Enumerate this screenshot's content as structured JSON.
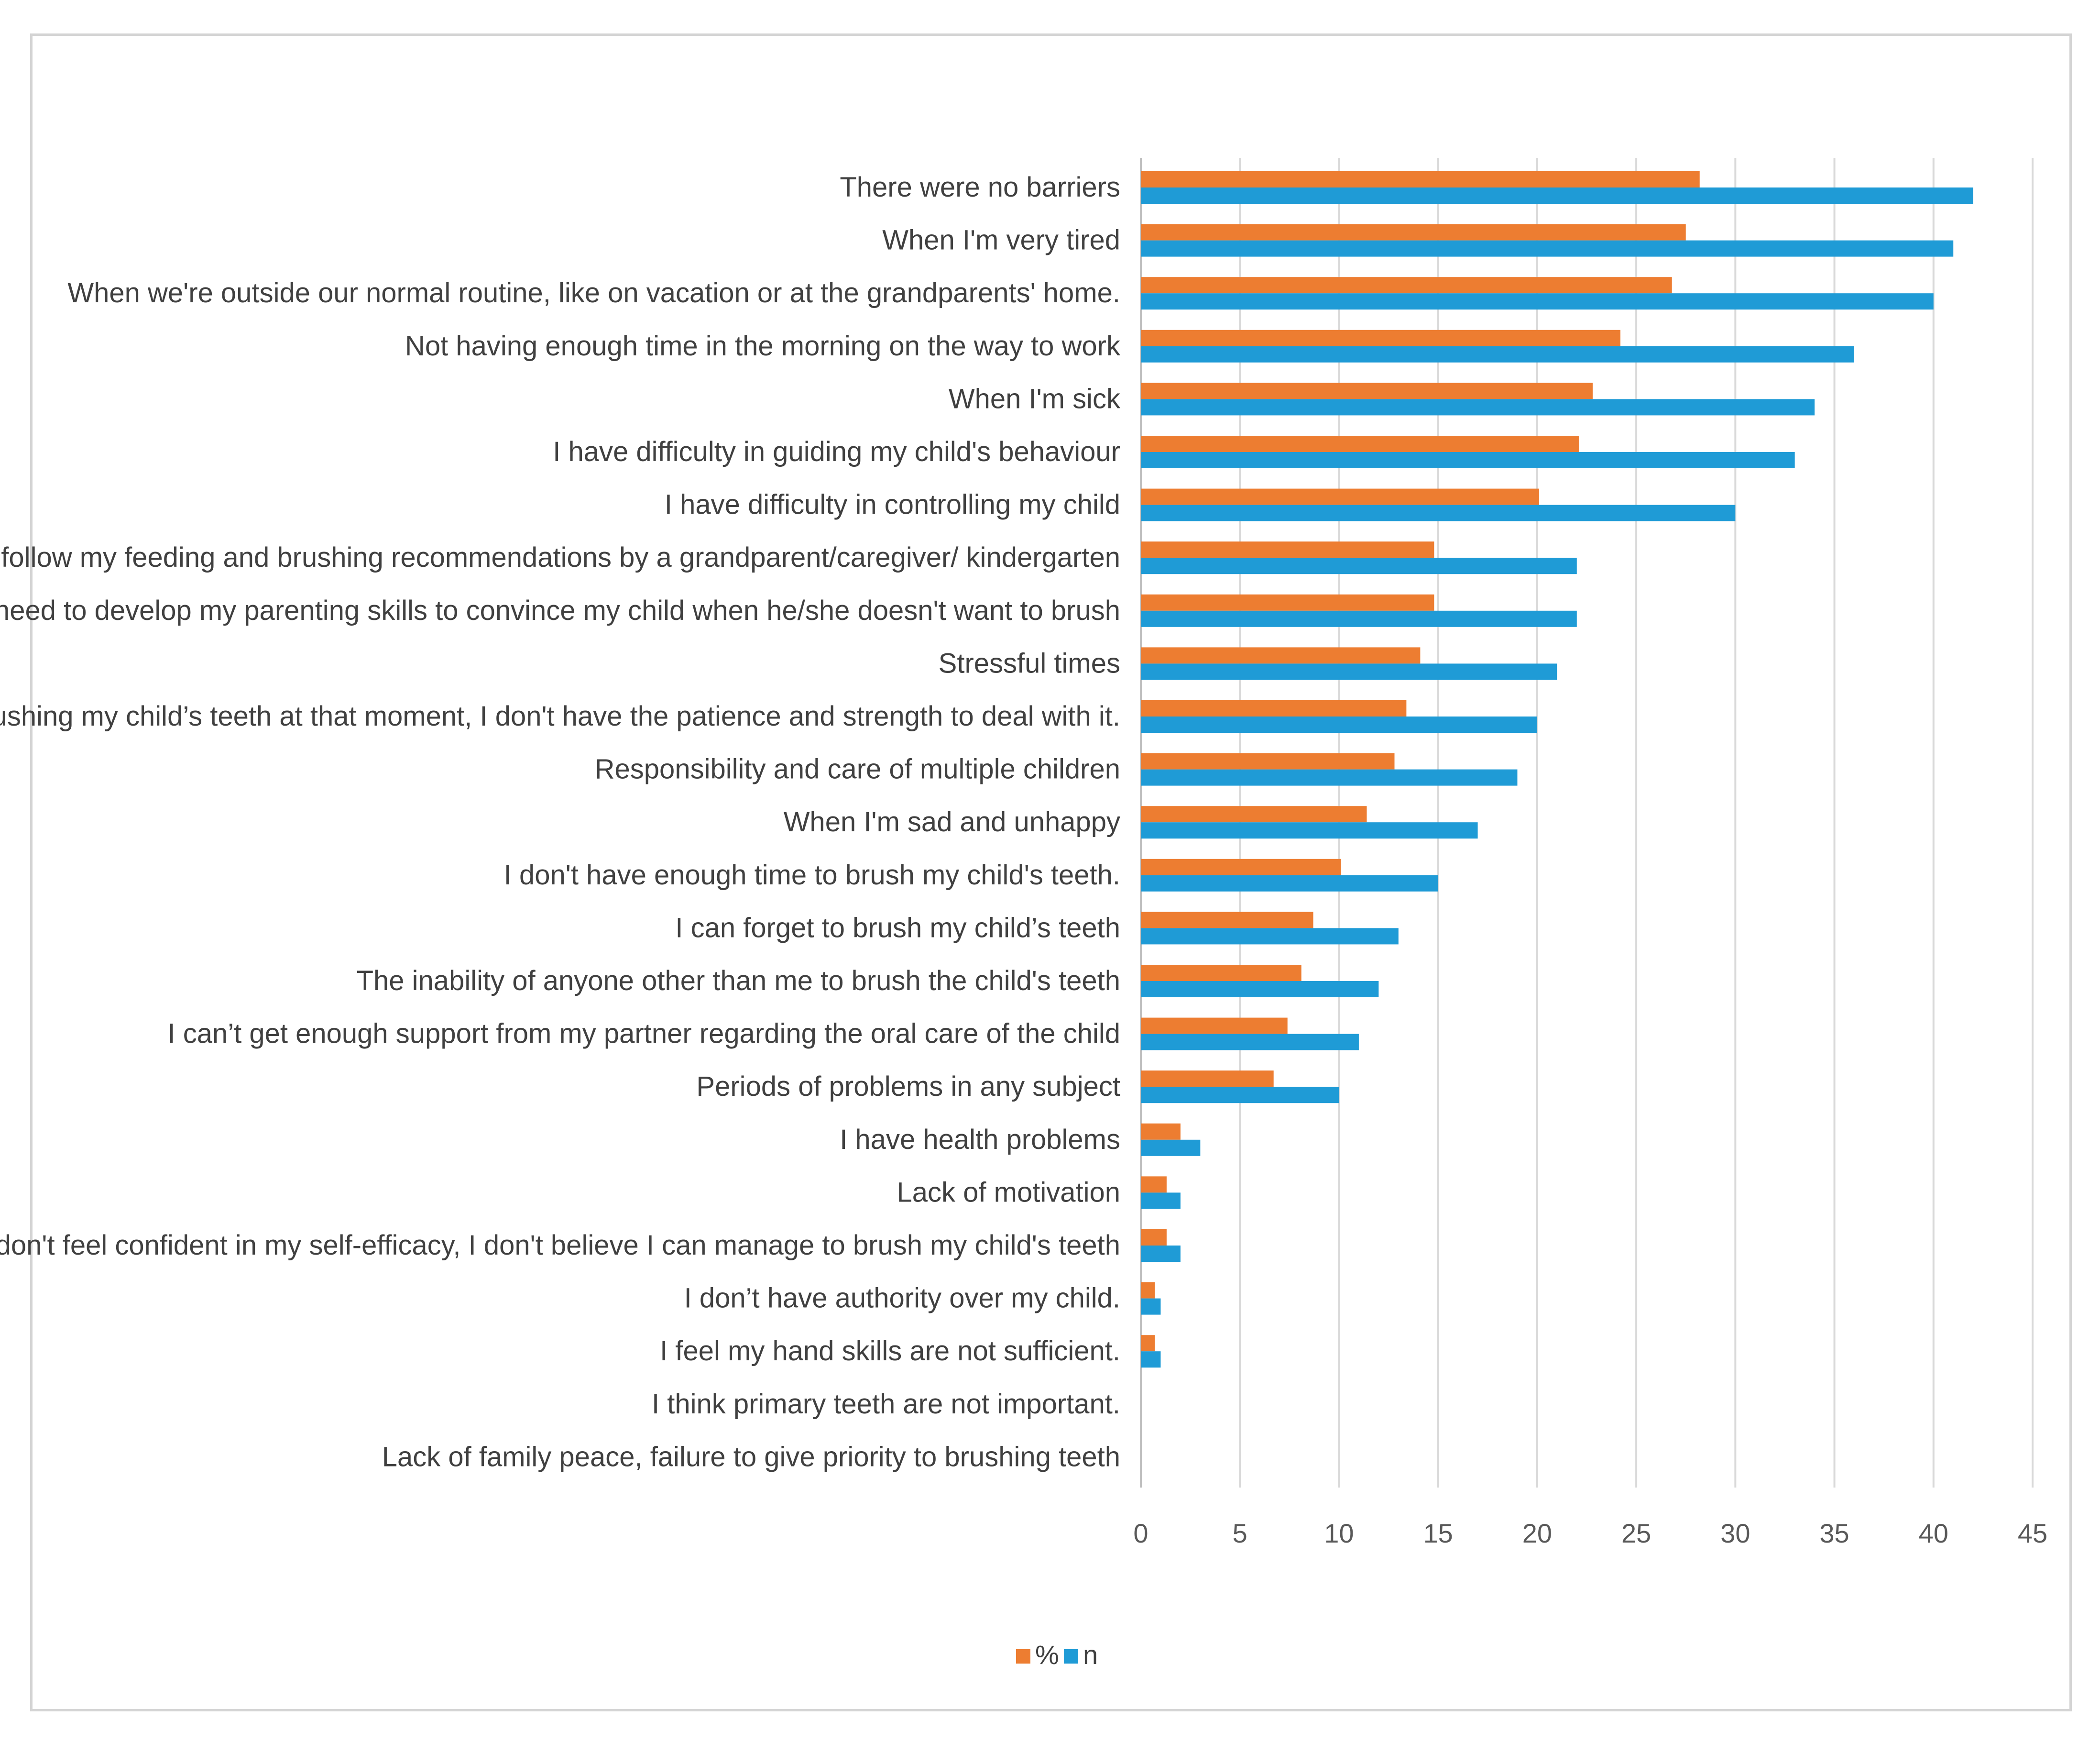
{
  "chart_data": {
    "type": "bar",
    "orientation": "horizontal",
    "title": "",
    "xlabel": "",
    "ylabel": "",
    "xlim": [
      0,
      45
    ],
    "xticks": [
      0,
      5,
      10,
      15,
      20,
      25,
      30,
      35,
      40,
      45
    ],
    "grid": true,
    "legend_position": "bottom",
    "categories": [
      "There were no barriers",
      "When I'm very tired",
      "When we're outside our normal routine, like on vacation or at the grandparents' home.",
      "Not having enough time in the morning on the way to work",
      "When I'm sick",
      "I have difficulty in guiding my child's behaviour",
      "I have difficulty in controlling my child",
      "The failure to follow my feeding and brushing recommendations by a grandparent/caregiver/ kindergarten",
      "I need to develop my parenting skills to convince my child when he/she doesn't want to brush",
      "Stressful times",
      "If it's hard brushing my child’s teeth at that moment, I don't have the patience and strength to deal with it.",
      "Responsibility and care of multiple children",
      "When I'm sad and unhappy",
      "I don't have enough time to brush my child's teeth.",
      "I can forget to brush my child’s teeth",
      "The inability of anyone other than me to brush the child's teeth",
      "I can’t get enough support from my partner regarding the oral care of the child",
      "Periods of problems in any subject",
      "I have health problems",
      "Lack of motivation",
      "I don't feel confident in my self-efficacy, I don't believe I can manage to brush my child's teeth",
      "I don’t have authority over my child.",
      "I feel my hand skills are not sufficient.",
      "I think primary teeth are not important.",
      "Lack of family peace, failure to give priority to brushing teeth"
    ],
    "series": [
      {
        "name": "%",
        "color": "#ED7D31",
        "values": [
          28.2,
          27.5,
          26.8,
          24.2,
          22.8,
          22.1,
          20.1,
          14.8,
          14.8,
          14.1,
          13.4,
          12.8,
          11.4,
          10.1,
          8.7,
          8.1,
          7.4,
          6.7,
          2.0,
          1.3,
          1.3,
          0.7,
          0.7,
          0,
          0
        ]
      },
      {
        "name": "n",
        "color": "#1F9BD6",
        "values": [
          42,
          41,
          40,
          36,
          34,
          33,
          30,
          22,
          22,
          21,
          20,
          19,
          17,
          15,
          13,
          12,
          11,
          10,
          3,
          2,
          2,
          1,
          1,
          0,
          0
        ]
      }
    ]
  },
  "colors": {
    "grid": "#d9d9d9",
    "axis": "#bfbfbf",
    "frame": "#d4d4d4"
  }
}
